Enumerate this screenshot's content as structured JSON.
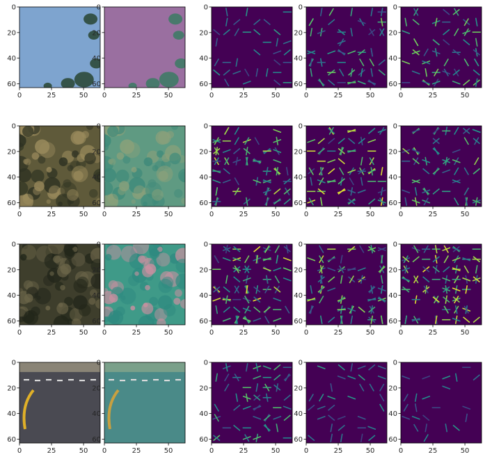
{
  "colors": {
    "viridis_dark": "#440154",
    "viridis_mid": "#21918c",
    "viridis_bright": "#fde725",
    "spine": "#000000",
    "tick_text": "#262626",
    "background": "#ffffff"
  },
  "chart_data": {
    "type": "heatmap",
    "grid": false,
    "layout": {
      "rows": 4,
      "cols": 5
    },
    "xlim": [
      0,
      63
    ],
    "ylim": [
      63,
      0
    ],
    "xticks": [
      "0",
      "25",
      "50"
    ],
    "yticks": [
      "0",
      "20",
      "40",
      "60"
    ],
    "xtick_values": [
      0,
      25,
      50
    ],
    "ytick_values": [
      0,
      20,
      40,
      60
    ],
    "column_kinds": [
      "rgb-image",
      "color-space-image",
      "hog-map",
      "hog-map",
      "hog-map"
    ],
    "rows": [
      {
        "scene": "sky-with-tree-branches",
        "image_colors": [
          "#7ea4cf",
          "#2e4a3a",
          "#a4c2de"
        ],
        "converted_colors": [
          "#9a6fa0",
          "#3f7a66",
          "#b07cb4"
        ],
        "hog_intensity": [
          0.35,
          0.55,
          0.55
        ]
      },
      {
        "scene": "bushes-and-dry-grass",
        "image_colors": [
          "#5f5a3a",
          "#2e3222",
          "#9a8a5c"
        ],
        "converted_colors": [
          "#5f9a82",
          "#3f8a7a",
          "#8aa07a"
        ],
        "hog_intensity": [
          0.65,
          0.7,
          0.6
        ]
      },
      {
        "scene": "dark-trees",
        "image_colors": [
          "#3e3e2c",
          "#22261a",
          "#6a6448"
        ],
        "converted_colors": [
          "#3f9a88",
          "#2f8a80",
          "#c890a0"
        ],
        "hog_intensity": [
          0.7,
          0.65,
          0.7
        ]
      },
      {
        "scene": "road-curve-with-yellow-line",
        "image_colors": [
          "#4a4a52",
          "#8a8476",
          "#e0b028"
        ],
        "converted_colors": [
          "#4a8a88",
          "#7aa08a",
          "#c8a040"
        ],
        "hog_intensity": [
          0.5,
          0.35,
          0.3
        ]
      }
    ]
  }
}
